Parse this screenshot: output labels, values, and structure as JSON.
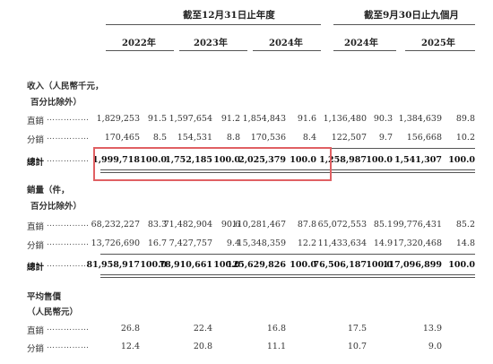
{
  "header": {
    "group1": "截至12月31日止年度",
    "group2": "截至9月30日止九個月",
    "years": [
      "2022年",
      "2023年",
      "2024年",
      "2024年",
      "2025年"
    ]
  },
  "revenue": {
    "title_line1": "收入（人民幣千元，",
    "title_line2": "百分比除外）",
    "rows": [
      {
        "label": "直銷",
        "dots": "……………",
        "values": [
          "1,829,253",
          "91.5",
          "1,597,654",
          "91.2",
          "1,854,843",
          "91.6",
          "1,136,480",
          "90.3",
          "1,384,639",
          "89.8"
        ]
      },
      {
        "label": "分銷",
        "dots": "……………",
        "values": [
          "170,465",
          "8.5",
          "154,531",
          "8.8",
          "170,536",
          "8.4",
          "122,507",
          "9.7",
          "156,668",
          "10.2"
        ]
      }
    ],
    "total": {
      "label": "總計",
      "dots": "……………",
      "values": [
        "1,999,718",
        "100.0",
        "1,752,185",
        "100.0",
        "2,025,379",
        "100.0",
        "1,258,987",
        "100.0",
        "1,541,307",
        "100.0"
      ]
    }
  },
  "volume": {
    "title_line1": "銷量（件，",
    "title_line2": "百分比除外）",
    "rows": [
      {
        "label": "直銷",
        "dots": "……………",
        "values": [
          "68,232,227",
          "83.3",
          "71,482,904",
          "90.6",
          "110,281,467",
          "87.8",
          "65,072,553",
          "85.1",
          "99,776,431",
          "85.2"
        ]
      },
      {
        "label": "分銷",
        "dots": "……………",
        "values": [
          "13,726,690",
          "16.7",
          "7,427,757",
          "9.4",
          "15,348,359",
          "12.2",
          "11,433,634",
          "14.9",
          "17,320,468",
          "14.8"
        ]
      }
    ],
    "total": {
      "label": "總計",
      "dots": "……………",
      "values": [
        "81,958,917",
        "100.0",
        "78,910,661",
        "100.0",
        "125,629,826",
        "100.0",
        "76,506,187",
        "100.0",
        "117,096,899",
        "100.0"
      ]
    }
  },
  "price": {
    "title_line1": "平均售價",
    "title_line2": "（人民幣元）",
    "rows": [
      {
        "label": "直銷",
        "dots": "……………",
        "values": [
          "26.8",
          "22.4",
          "16.8",
          "17.5",
          "13.9"
        ]
      },
      {
        "label": "分銷",
        "dots": "……………",
        "values": [
          "12.4",
          "20.8",
          "11.1",
          "10.7",
          "9.0"
        ]
      }
    ]
  },
  "colors": {
    "highlight_box": "#e06063"
  }
}
